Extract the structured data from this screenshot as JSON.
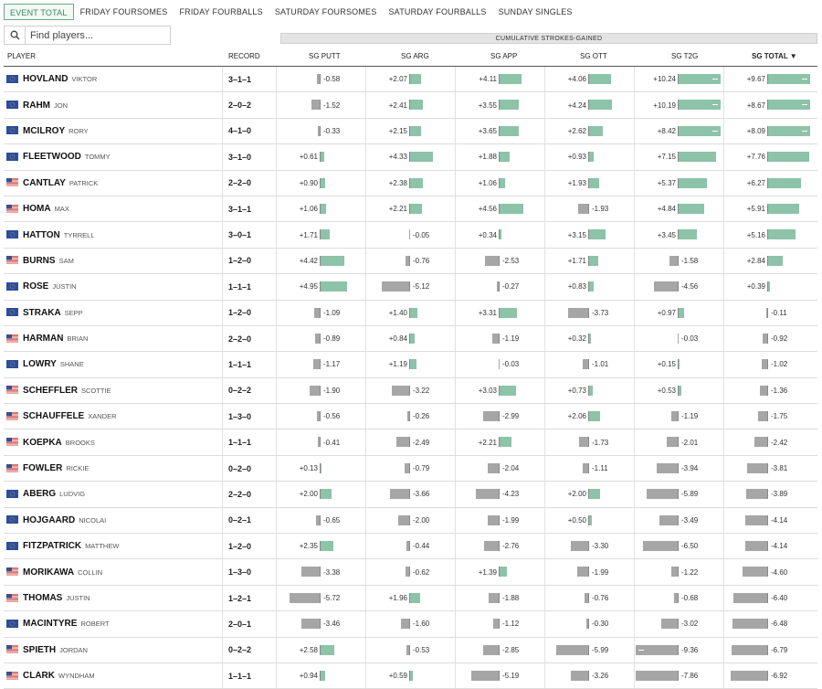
{
  "tabs": [
    {
      "label": "EVENT TOTAL",
      "active": true
    },
    {
      "label": "FRIDAY FOURSOMES",
      "active": false
    },
    {
      "label": "FRIDAY FOURBALLS",
      "active": false
    },
    {
      "label": "SATURDAY FOURSOMES",
      "active": false
    },
    {
      "label": "SATURDAY FOURBALLS",
      "active": false
    },
    {
      "label": "SUNDAY SINGLES",
      "active": false
    }
  ],
  "search": {
    "placeholder": "Find players..."
  },
  "super_header": "CUMULATIVE STROKES-GAINED",
  "headers": {
    "player": "PLAYER",
    "record": "RECORD",
    "putt": "SG PUTT",
    "arg": "SG ARG",
    "app": "SG APP",
    "ott": "SG OTT",
    "t2g": "SG T2G",
    "total": "SG TOTAL"
  },
  "colors": {
    "positive": "#8cc3a9",
    "negative": "#a6a6a6",
    "active_tab": "#3c8a62"
  },
  "players": [
    {
      "last": "HOVLAND",
      "first": "VIKTOR",
      "team": "eu",
      "record": "3–1–1",
      "sg": [
        "-0.58",
        "+2.07",
        "+4.11",
        "+4.06",
        "+10.24",
        "+9.67"
      ]
    },
    {
      "last": "RAHM",
      "first": "JON",
      "team": "eu",
      "record": "2–0–2",
      "sg": [
        "-1.52",
        "+2.41",
        "+3.55",
        "+4.24",
        "+10.19",
        "+8.67"
      ]
    },
    {
      "last": "MCILROY",
      "first": "RORY",
      "team": "eu",
      "record": "4–1–0",
      "sg": [
        "-0.33",
        "+2.15",
        "+3.65",
        "+2.62",
        "+8.42",
        "+8.09"
      ]
    },
    {
      "last": "FLEETWOOD",
      "first": "TOMMY",
      "team": "eu",
      "record": "3–1–0",
      "sg": [
        "+0.61",
        "+4.33",
        "+1.88",
        "+0.93",
        "+7.15",
        "+7.76"
      ]
    },
    {
      "last": "CANTLAY",
      "first": "PATRICK",
      "team": "us",
      "record": "2–2–0",
      "sg": [
        "+0.90",
        "+2.38",
        "+1.06",
        "+1.93",
        "+5.37",
        "+6.27"
      ]
    },
    {
      "last": "HOMA",
      "first": "MAX",
      "team": "us",
      "record": "3–1–1",
      "sg": [
        "+1.06",
        "+2.21",
        "+4.56",
        "-1.93",
        "+4.84",
        "+5.91"
      ]
    },
    {
      "last": "HATTON",
      "first": "TYRRELL",
      "team": "eu",
      "record": "3–0–1",
      "sg": [
        "+1.71",
        "-0.05",
        "+0.34",
        "+3.15",
        "+3.45",
        "+5.16"
      ]
    },
    {
      "last": "BURNS",
      "first": "SAM",
      "team": "us",
      "record": "1–2–0",
      "sg": [
        "+4.42",
        "-0.76",
        "-2.53",
        "+1.71",
        "-1.58",
        "+2.84"
      ]
    },
    {
      "last": "ROSE",
      "first": "JUSTIN",
      "team": "eu",
      "record": "1–1–1",
      "sg": [
        "+4.95",
        "-5.12",
        "-0.27",
        "+0.83",
        "-4.56",
        "+0.39"
      ]
    },
    {
      "last": "STRAKA",
      "first": "SEPP",
      "team": "eu",
      "record": "1–2–0",
      "sg": [
        "-1.09",
        "+1.40",
        "+3.31",
        "-3.73",
        "+0.97",
        "-0.11"
      ]
    },
    {
      "last": "HARMAN",
      "first": "BRIAN",
      "team": "us",
      "record": "2–2–0",
      "sg": [
        "-0.89",
        "+0.84",
        "-1.19",
        "+0.32",
        "-0.03",
        "-0.92"
      ]
    },
    {
      "last": "LOWRY",
      "first": "SHANE",
      "team": "eu",
      "record": "1–1–1",
      "sg": [
        "-1.17",
        "+1.19",
        "-0.03",
        "-1.01",
        "+0.15",
        "-1.02"
      ]
    },
    {
      "last": "SCHEFFLER",
      "first": "SCOTTIE",
      "team": "us",
      "record": "0–2–2",
      "sg": [
        "-1.90",
        "-3.22",
        "+3.03",
        "+0.73",
        "+0.53",
        "-1.36"
      ]
    },
    {
      "last": "SCHAUFFELE",
      "first": "XANDER",
      "team": "us",
      "record": "1–3–0",
      "sg": [
        "-0.56",
        "-0.26",
        "-2.99",
        "+2.06",
        "-1.19",
        "-1.75"
      ]
    },
    {
      "last": "KOEPKA",
      "first": "BROOKS",
      "team": "us",
      "record": "1–1–1",
      "sg": [
        "-0.41",
        "-2.49",
        "+2.21",
        "-1.73",
        "-2.01",
        "-2.42"
      ]
    },
    {
      "last": "FOWLER",
      "first": "RICKIE",
      "team": "us",
      "record": "0–2–0",
      "sg": [
        "+0.13",
        "-0.79",
        "-2.04",
        "-1.11",
        "-3.94",
        "-3.81"
      ]
    },
    {
      "last": "ABERG",
      "first": "LUDVIG",
      "team": "eu",
      "record": "2–2–0",
      "sg": [
        "+2.00",
        "-3.66",
        "-4.23",
        "+2.00",
        "-5.89",
        "-3.89"
      ]
    },
    {
      "last": "HOJGAARD",
      "first": "NICOLAI",
      "team": "eu",
      "record": "0–2–1",
      "sg": [
        "-0.65",
        "-2.00",
        "-1.99",
        "+0.50",
        "-3.49",
        "-4.14"
      ]
    },
    {
      "last": "FITZPATRICK",
      "first": "MATTHEW",
      "team": "eu",
      "record": "1–2–0",
      "sg": [
        "+2.35",
        "-0.44",
        "-2.76",
        "-3.30",
        "-6.50",
        "-4.14"
      ]
    },
    {
      "last": "MORIKAWA",
      "first": "COLLIN",
      "team": "us",
      "record": "1–3–0",
      "sg": [
        "-3.38",
        "-0.62",
        "+1.39",
        "-1.99",
        "-1.22",
        "-4.60"
      ]
    },
    {
      "last": "THOMAS",
      "first": "JUSTIN",
      "team": "us",
      "record": "1–2–1",
      "sg": [
        "-5.72",
        "+1.96",
        "-1.88",
        "-0.76",
        "-0.68",
        "-6.40"
      ]
    },
    {
      "last": "MACINTYRE",
      "first": "ROBERT",
      "team": "eu",
      "record": "2–0–1",
      "sg": [
        "-3.46",
        "-1.60",
        "-1.12",
        "-0.30",
        "-3.02",
        "-6.48"
      ]
    },
    {
      "last": "SPIETH",
      "first": "JORDAN",
      "team": "us",
      "record": "0–2–2",
      "sg": [
        "+2.58",
        "-0.53",
        "-2.85",
        "-5.99",
        "-9.36",
        "-6.79"
      ]
    },
    {
      "last": "CLARK",
      "first": "WYNDHAM",
      "team": "us",
      "record": "1–1–1",
      "sg": [
        "+0.94",
        "+0.59",
        "-5.19",
        "-3.26",
        "-7.86",
        "-6.92"
      ]
    }
  ]
}
